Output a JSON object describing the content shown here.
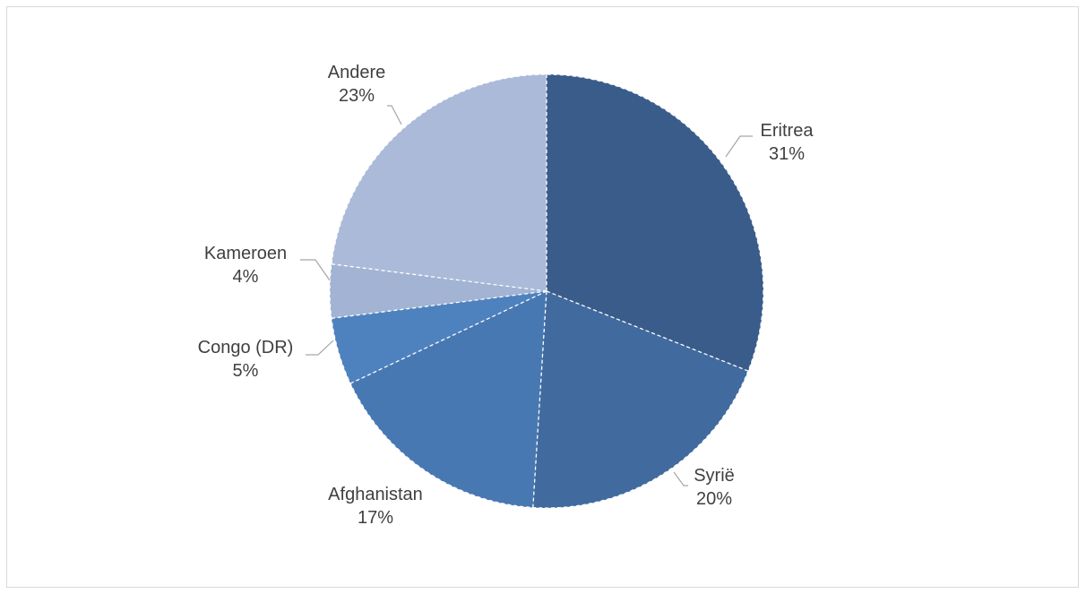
{
  "chart_data": {
    "type": "pie",
    "title": "",
    "start_angle_deg": 0,
    "direction": "clockwise",
    "slices": [
      {
        "label": "Eritrea",
        "value": 31,
        "value_label": "31%",
        "color": "#3a5c8a"
      },
      {
        "label": "Syrië",
        "value": 20,
        "value_label": "20%",
        "color": "#416b9e"
      },
      {
        "label": "Afghanistan",
        "value": 17,
        "value_label": "17%",
        "color": "#4878b2"
      },
      {
        "label": "Congo (DR)",
        "value": 5,
        "value_label": "5%",
        "color": "#4e82be"
      },
      {
        "label": "Kameroen",
        "value": 4,
        "value_label": "4%",
        "color": "#a2b3d3"
      },
      {
        "label": "Andere",
        "value": 23,
        "value_label": "23%",
        "color": "#abbad8"
      }
    ],
    "slice_border_color": "#ffffff",
    "leader_line_color": "#a6a6a6",
    "label_color": "#404040"
  }
}
